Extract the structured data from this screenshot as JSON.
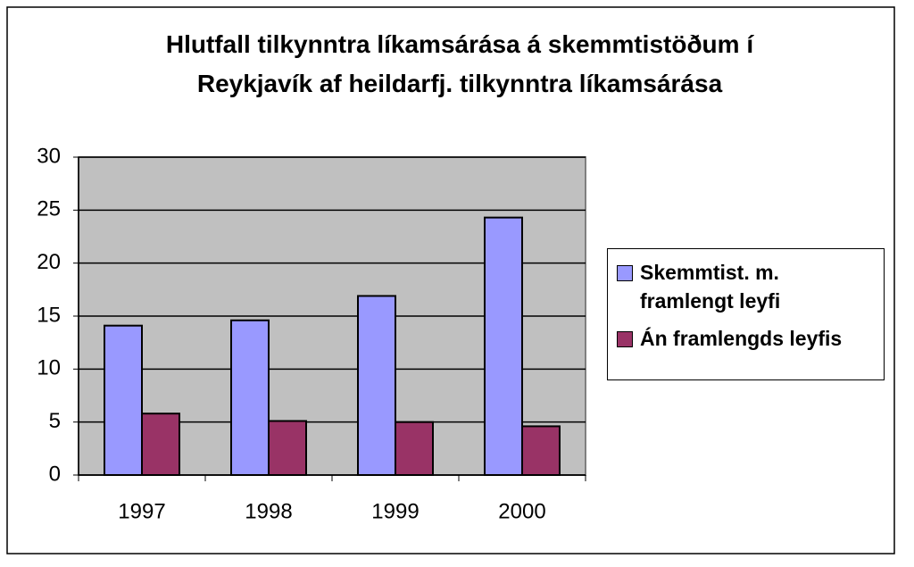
{
  "chart_data": {
    "type": "bar",
    "title": "Hlutfall tilkynntra líkamsárása á skemmtistöðum í Reykjavík af heildarfj. tilkynntra líkamsárása",
    "categories": [
      "1997",
      "1998",
      "1999",
      "2000"
    ],
    "series": [
      {
        "name": "Skemmtist. m. framlengt leyfi",
        "color": "#9999ff",
        "values": [
          14.1,
          14.6,
          16.9,
          24.3
        ]
      },
      {
        "name": "Án framlengds leyfis",
        "color": "#993366",
        "values": [
          5.8,
          5.1,
          5.0,
          4.6
        ]
      }
    ],
    "ylim": [
      0,
      30
    ],
    "yticks": [
      0,
      5,
      10,
      15,
      20,
      25,
      30
    ],
    "grid": true,
    "legend": "right"
  }
}
